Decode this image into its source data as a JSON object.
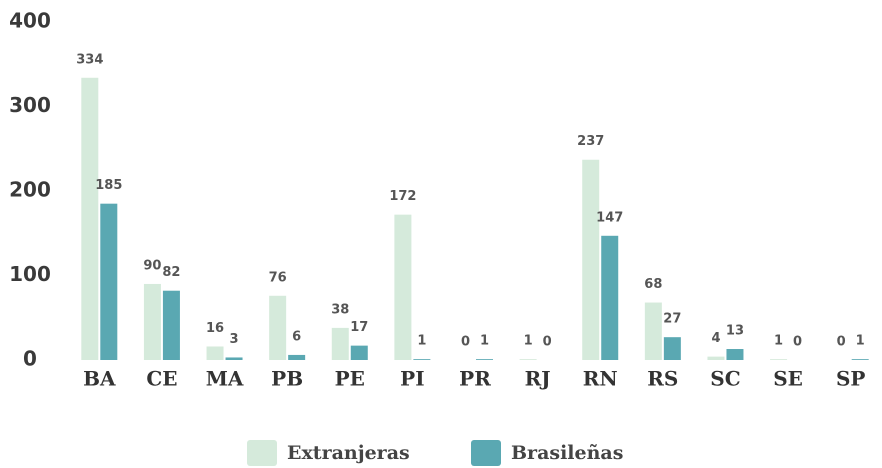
{
  "chart_data": {
    "type": "bar",
    "categories": [
      "BA",
      "CE",
      "MA",
      "PB",
      "PE",
      "PI",
      "PR",
      "RJ",
      "RN",
      "RS",
      "SC",
      "SE",
      "SP"
    ],
    "series": [
      {
        "name": "Extranjeras",
        "color": "#d5eadb",
        "values": [
          334,
          90,
          16,
          76,
          38,
          172,
          0,
          1,
          237,
          68,
          4,
          1,
          0
        ]
      },
      {
        "name": "Brasileñas",
        "color": "#5aa8b2",
        "values": [
          185,
          82,
          3,
          6,
          17,
          1,
          1,
          0,
          147,
          27,
          13,
          0,
          1
        ]
      }
    ],
    "ylim": [
      0,
      400
    ],
    "yticks": [
      0,
      100,
      200,
      300,
      400
    ],
    "grid": false,
    "legend": "bottom"
  }
}
